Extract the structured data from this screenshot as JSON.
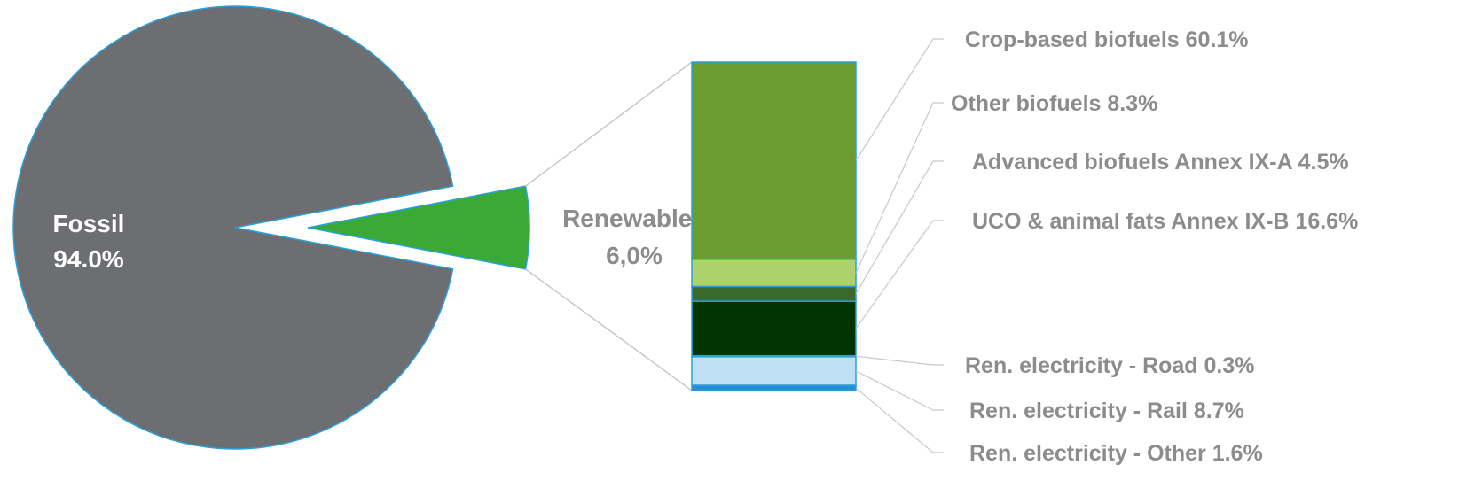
{
  "chart_data": {
    "type": "bar-of-pie",
    "pie": {
      "slices": [
        {
          "name": "Fossil",
          "value": 94.0,
          "label": "Fossil",
          "value_label": "94.0%",
          "color": "#6c6e71"
        },
        {
          "name": "Renewables",
          "value": 6.0,
          "label": "Renewables",
          "value_label": "6,0%",
          "color": "#3aa935"
        }
      ],
      "exploded_slice": "Renewables"
    },
    "breakdown": {
      "of": "Renewables",
      "segments": [
        {
          "name": "Crop-based biofuels",
          "value": 60.1,
          "label": "Crop-based biofuels 60.1%",
          "color": "#6a9c30"
        },
        {
          "name": "Other biofuels",
          "value": 8.3,
          "label": "Other biofuels 8.3%",
          "color": "#aed26b"
        },
        {
          "name": "Advanced biofuels Annex IX-A",
          "value": 4.5,
          "label": "Advanced biofuels Annex IX-A 4.5%",
          "color": "#3b6b2a"
        },
        {
          "name": "UCO & animal fats Annex IX-B",
          "value": 16.6,
          "label": "UCO & animal fats Annex IX-B 16.6%",
          "color": "#003300"
        },
        {
          "name": "Ren. electricity - Road",
          "value": 0.3,
          "label": "Ren. electricity - Road 0.3%",
          "color": "#1f7fc8"
        },
        {
          "name": "Ren. electricity - Rail",
          "value": 8.7,
          "label": "Ren. electricity - Rail 8.7%",
          "color": "#bfe0f4"
        },
        {
          "name": "Ren. electricity - Other",
          "value": 1.6,
          "label": "Ren. electricity - Other 1.6%",
          "color": "#2390d6"
        }
      ]
    },
    "colors": {
      "outline": "#2aa0dc",
      "leader_line": "#c8c8c8",
      "label_text": "#8c8c8c",
      "inner_label_text": "#ffffff"
    }
  }
}
